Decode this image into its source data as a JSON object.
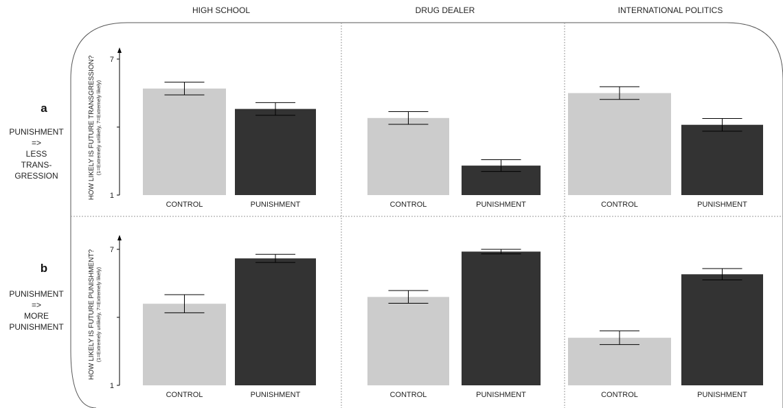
{
  "columns": [
    "HIGH SCHOOL",
    "DRUG DEALER",
    "INTERNATIONAL POLITICS"
  ],
  "rows": [
    {
      "letter": "a",
      "caption": [
        "PUNISHMENT",
        "=>",
        "LESS",
        "TRANS-",
        "GRESSION"
      ],
      "ylabel": "HOW LIKELY IS FUTURE TRANSGRESSION?",
      "ysublabel": "(1=Extremely unlikely, 7=Extremely likely)"
    },
    {
      "letter": "b",
      "caption": [
        "PUNISHMENT",
        "=>",
        "MORE",
        "PUNISHMENT"
      ],
      "ylabel": "HOW LIKELY IS FUTURE PUNISHMENT?",
      "ysublabel": "(1=Extremely unlikely, 7=Extremely likely)"
    }
  ],
  "colors": {
    "control": "#cccccc",
    "punishment": "#333333",
    "axis": "#000000",
    "divider": "#999999"
  },
  "chart_data": [
    {
      "type": "bar",
      "row": "a",
      "categories": [
        "CONTROL",
        "PUNISHMENT"
      ],
      "ylim": [
        1,
        7
      ],
      "yticks": [
        1,
        7
      ],
      "panels": [
        {
          "column": "HIGH SCHOOL",
          "values": [
            5.7,
            4.8
          ],
          "errors": [
            0.28,
            0.28
          ]
        },
        {
          "column": "DRUG DEALER",
          "values": [
            4.4,
            2.3
          ],
          "errors": [
            0.28,
            0.26
          ]
        },
        {
          "column": "INTERNATIONAL POLITICS",
          "values": [
            5.5,
            4.1
          ],
          "errors": [
            0.28,
            0.28
          ]
        }
      ]
    },
    {
      "type": "bar",
      "row": "b",
      "categories": [
        "CONTROL",
        "PUNISHMENT"
      ],
      "ylim": [
        1,
        7
      ],
      "yticks": [
        1,
        7
      ],
      "panels": [
        {
          "column": "HIGH SCHOOL",
          "values": [
            4.6,
            6.6
          ],
          "errors": [
            0.4,
            0.18
          ]
        },
        {
          "column": "DRUG DEALER",
          "values": [
            4.9,
            6.9
          ],
          "errors": [
            0.28,
            0.1
          ]
        },
        {
          "column": "INTERNATIONAL POLITICS",
          "values": [
            3.1,
            5.9
          ],
          "errors": [
            0.3,
            0.25
          ]
        }
      ]
    }
  ]
}
